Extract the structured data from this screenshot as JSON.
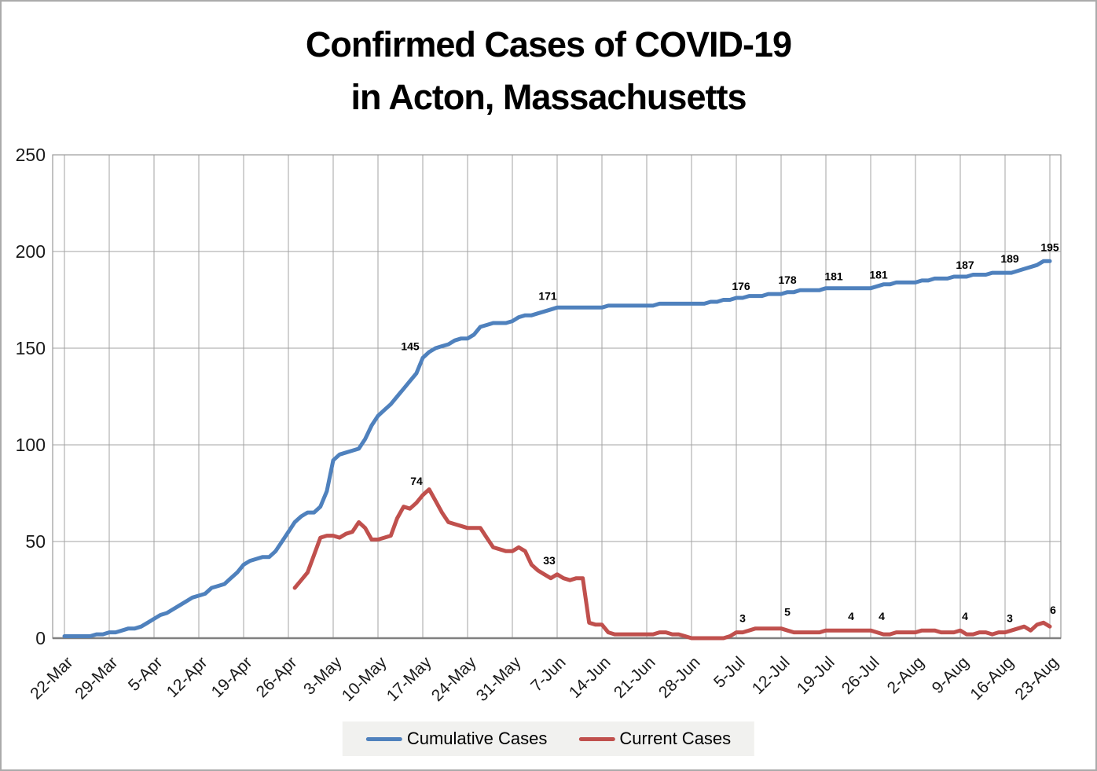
{
  "title": {
    "line1": "Confirmed Cases of COVID-19",
    "line2": "in Acton, Massachusetts"
  },
  "legend": [
    {
      "label": "Cumulative Cases",
      "color": "#4F81BD"
    },
    {
      "label": "Current Cases",
      "color": "#C0504D"
    }
  ],
  "colors": {
    "cumulative": "#4F81BD",
    "current": "#C0504D",
    "gridline": "#a3a3a3",
    "plot_border": "#999999",
    "axis_line": "#808080",
    "tick_text": "#1a1a1a",
    "label_text": "#000000",
    "legend_bg": "#f1f1ef"
  },
  "chart_data": {
    "type": "line",
    "title": "Confirmed Cases of COVID-19 in Acton, Massachusetts",
    "frequency": "daily",
    "x_start": "22-Mar",
    "x_end": "23-Aug",
    "x_tick_every_days": 7,
    "x_tick_labels": [
      "22-Mar",
      "29-Mar",
      "5-Apr",
      "12-Apr",
      "19-Apr",
      "26-Apr",
      "3-May",
      "10-May",
      "17-May",
      "24-May",
      "31-May",
      "7-Jun",
      "14-Jun",
      "21-Jun",
      "28-Jun",
      "5-Jul",
      "12-Jul",
      "19-Jul",
      "26-Jul",
      "2-Aug",
      "9-Aug",
      "16-Aug",
      "23-Aug"
    ],
    "ylim": [
      0,
      250
    ],
    "y_ticks": [
      0,
      50,
      100,
      150,
      200,
      250
    ],
    "grid": true,
    "legend_position": "bottom-center",
    "series": [
      {
        "name": "Cumulative Cases",
        "color": "#4F81BD",
        "values": [
          1,
          1,
          1,
          1,
          1,
          2,
          2,
          3,
          3,
          4,
          5,
          5,
          6,
          8,
          10,
          12,
          13,
          15,
          17,
          19,
          21,
          22,
          23,
          26,
          27,
          28,
          31,
          34,
          38,
          40,
          41,
          42,
          42,
          45,
          50,
          55,
          60,
          63,
          65,
          65,
          68,
          76,
          92,
          95,
          96,
          97,
          98,
          103,
          110,
          115,
          118,
          121,
          125,
          129,
          133,
          137,
          145,
          148,
          150,
          151,
          152,
          154,
          155,
          155,
          157,
          161,
          162,
          163,
          163,
          163,
          164,
          166,
          167,
          167,
          168,
          169,
          170,
          171,
          171,
          171,
          171,
          171,
          171,
          171,
          171,
          172,
          172,
          172,
          172,
          172,
          172,
          172,
          172,
          173,
          173,
          173,
          173,
          173,
          173,
          173,
          173,
          174,
          174,
          175,
          175,
          176,
          176,
          177,
          177,
          177,
          178,
          178,
          178,
          179,
          179,
          180,
          180,
          180,
          180,
          181,
          181,
          181,
          181,
          181,
          181,
          181,
          181,
          182,
          183,
          183,
          184,
          184,
          184,
          184,
          185,
          185,
          186,
          186,
          186,
          187,
          187,
          187,
          188,
          188,
          188,
          189,
          189,
          189,
          189,
          190,
          191,
          192,
          193,
          195,
          195
        ],
        "point_labels": [
          {
            "i": 56,
            "t": "145",
            "dx": -16,
            "dy": -10
          },
          {
            "i": 77,
            "t": "171",
            "dx": -12,
            "dy": -10
          },
          {
            "i": 105,
            "t": "176",
            "dx": 6,
            "dy": -10
          },
          {
            "i": 112,
            "t": "178",
            "dx": 8,
            "dy": -13
          },
          {
            "i": 119,
            "t": "181",
            "dx": 10,
            "dy": -10
          },
          {
            "i": 126,
            "t": "181",
            "dx": 10,
            "dy": -12
          },
          {
            "i": 140,
            "t": "187",
            "dx": 6,
            "dy": -10
          },
          {
            "i": 147,
            "t": "189",
            "dx": 6,
            "dy": -13
          },
          {
            "i": 154,
            "t": "195",
            "dx": 0,
            "dy": -13
          }
        ]
      },
      {
        "name": "Current Cases",
        "color": "#C0504D",
        "values": [
          null,
          null,
          null,
          null,
          null,
          null,
          null,
          null,
          null,
          null,
          null,
          null,
          null,
          null,
          null,
          null,
          null,
          null,
          null,
          null,
          null,
          null,
          null,
          null,
          null,
          null,
          null,
          null,
          null,
          null,
          null,
          null,
          null,
          null,
          null,
          null,
          26,
          30,
          34,
          43,
          52,
          53,
          53,
          52,
          54,
          55,
          60,
          57,
          51,
          51,
          52,
          53,
          62,
          68,
          67,
          70,
          74,
          77,
          71,
          65,
          60,
          59,
          58,
          57,
          57,
          57,
          52,
          47,
          46,
          45,
          45,
          47,
          45,
          38,
          35,
          33,
          31,
          33,
          31,
          30,
          31,
          31,
          8,
          7,
          7,
          3,
          2,
          2,
          2,
          2,
          2,
          2,
          2,
          3,
          3,
          2,
          2,
          1,
          0,
          0,
          0,
          0,
          0,
          0,
          1,
          3,
          3,
          4,
          5,
          5,
          5,
          5,
          5,
          4,
          3,
          3,
          3,
          3,
          3,
          4,
          4,
          4,
          4,
          4,
          4,
          4,
          4,
          3,
          2,
          2,
          3,
          3,
          3,
          3,
          4,
          4,
          4,
          3,
          3,
          3,
          4,
          2,
          2,
          3,
          3,
          2,
          3,
          3,
          4,
          5,
          6,
          4,
          7,
          8,
          6
        ],
        "point_labels": [
          {
            "i": 56,
            "t": "74",
            "dx": -8,
            "dy": -13
          },
          {
            "i": 77,
            "t": "33",
            "dx": -10,
            "dy": -13
          },
          {
            "i": 105,
            "t": "3",
            "dx": 8,
            "dy": -13
          },
          {
            "i": 112,
            "t": "5",
            "dx": 8,
            "dy": -16
          },
          {
            "i": 119,
            "t": "4",
            "dx": 32,
            "dy": -13
          },
          {
            "i": 126,
            "t": "4",
            "dx": 14,
            "dy": -13
          },
          {
            "i": 140,
            "t": "4",
            "dx": 6,
            "dy": -13
          },
          {
            "i": 147,
            "t": "3",
            "dx": 6,
            "dy": -13
          },
          {
            "i": 154,
            "t": "6",
            "dx": 4,
            "dy": -16
          }
        ]
      }
    ]
  }
}
